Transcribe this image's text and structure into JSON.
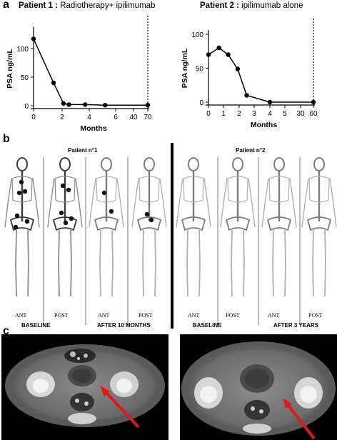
{
  "panels": {
    "a": "a",
    "b": "b",
    "c": "c"
  },
  "chart_data": [
    {
      "type": "line",
      "title_bold": "Patient 1 :",
      "title_rest": " Radiotherapy+ ipilimumab",
      "xlabel": "Months",
      "ylabel": "PSA ng/mL",
      "x_ticks": [
        "0",
        "2",
        "4",
        "6",
        "40",
        "70"
      ],
      "y_ticks": [
        "0",
        "50",
        "100"
      ],
      "ylim": [
        0,
        130
      ],
      "axis_break": "dotted line before 70",
      "series": [
        {
          "x": [
            0,
            1.4,
            2.1,
            2.5,
            3.7,
            5.2,
            70
          ],
          "y": [
            117,
            40,
            4,
            2,
            2,
            1,
            1
          ]
        }
      ]
    },
    {
      "type": "line",
      "title_bold": "Patient 2 :",
      "title_rest": " ipilimumab alone",
      "xlabel": "Months",
      "ylabel": "PSA ng/mL",
      "x_ticks": [
        "0",
        "1",
        "2",
        "3",
        "4",
        "5",
        "30",
        "60"
      ],
      "y_ticks": [
        "0",
        "50",
        "100"
      ],
      "ylim": [
        0,
        100
      ],
      "axis_break": "dotted line before 60",
      "series": [
        {
          "x": [
            0,
            0.7,
            1.3,
            1.9,
            2.5,
            4,
            60
          ],
          "y": [
            70,
            80,
            70,
            49,
            10,
            0,
            0
          ]
        }
      ]
    }
  ],
  "bone_scan": {
    "patient1": "Patient n°1",
    "patient2": "Patient n°2",
    "views": [
      "ANT",
      "POST",
      "ANT",
      "POST",
      "ANT",
      "POST",
      "ANT",
      "POST"
    ],
    "time1": {
      "baseline": "BASELINE",
      "after": "AFTER 10 MONTHS"
    },
    "time2": {
      "baseline": "BASELINE",
      "after": "AFTER 3 YEARS"
    }
  }
}
